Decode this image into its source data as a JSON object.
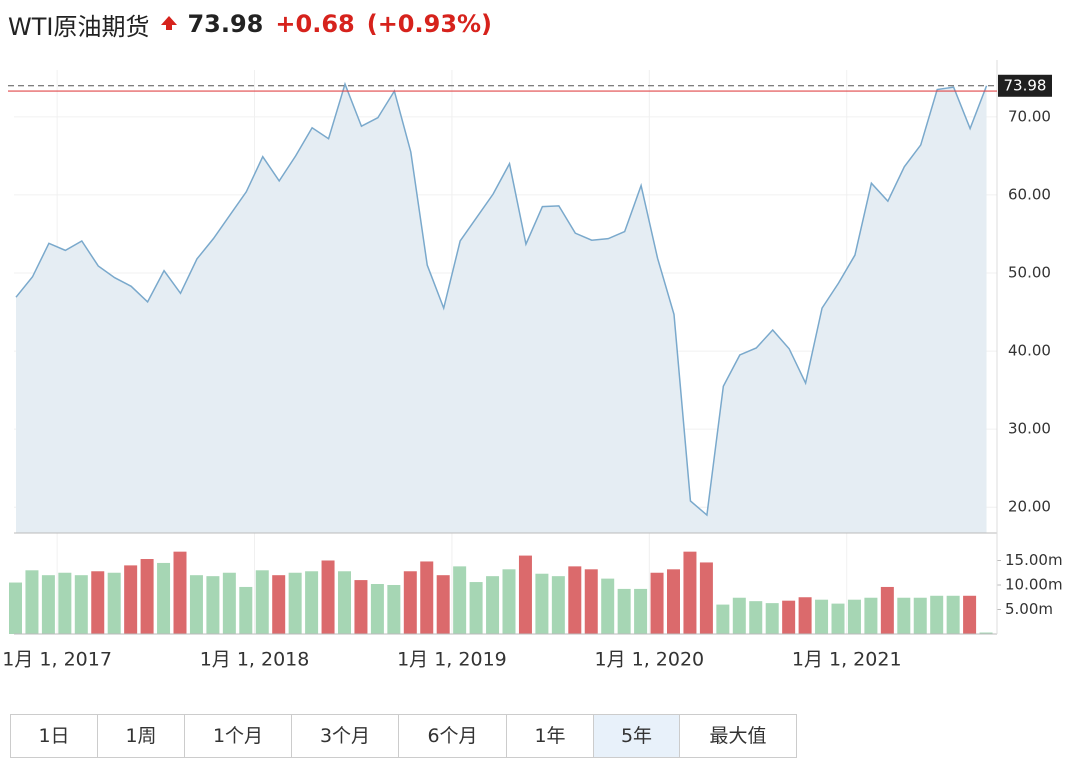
{
  "header": {
    "title": "WTI原油期货",
    "price": "73.98",
    "change": "+0.68",
    "change_pct": "(+0.93%)"
  },
  "chart_data": {
    "type": "line",
    "categories": [
      null,
      null,
      null,
      "1月 1, 2017",
      null,
      null,
      null,
      null,
      null,
      null,
      null,
      null,
      null,
      null,
      null,
      "1月 1, 2018",
      null,
      null,
      null,
      null,
      null,
      null,
      null,
      null,
      null,
      null,
      null,
      "1月 1, 2019",
      null,
      null,
      null,
      null,
      null,
      null,
      null,
      null,
      null,
      null,
      null,
      "1月 1, 2020",
      null,
      null,
      null,
      null,
      null,
      null,
      null,
      null,
      null,
      null,
      null,
      "1月 1, 2021",
      null,
      null,
      null,
      null,
      null,
      null,
      null,
      null
    ],
    "series": [
      {
        "color": "#7aa9cc",
        "fill": "#e5edf3",
        "values": [
          46.9,
          49.5,
          53.8,
          52.9,
          54.1,
          50.9,
          49.4,
          48.3,
          46.3,
          50.3,
          47.4,
          51.8,
          54.4,
          57.4,
          60.4,
          64.9,
          61.8,
          65.0,
          68.6,
          67.2,
          74.2,
          68.8,
          69.9,
          73.3,
          65.5,
          51.0,
          45.5,
          54.1,
          57.1,
          60.1,
          64.0,
          53.7,
          58.5,
          58.6,
          55.1,
          54.2,
          54.4,
          55.3,
          61.2,
          51.9,
          44.7,
          20.8,
          19.0,
          35.5,
          39.5,
          40.4,
          42.7,
          40.3,
          35.9,
          45.5,
          48.7,
          52.3,
          61.5,
          59.2,
          63.6,
          66.4,
          73.5,
          73.8,
          68.5,
          73.98
        ]
      }
    ],
    "ylim": [
      16.7,
      76
    ],
    "yticks": [
      {
        "value": 20,
        "label": "20.00"
      },
      {
        "value": 30,
        "label": "30.00"
      },
      {
        "value": 40,
        "label": "40.00"
      },
      {
        "value": 50,
        "label": "50.00"
      },
      {
        "value": 60,
        "label": "60.00"
      },
      {
        "value": 70,
        "label": "70.00"
      }
    ],
    "last_price": 73.98,
    "previous_close": 73.3,
    "grid": true,
    "volume": {
      "type": "bar",
      "values": [
        10.5,
        13,
        12,
        12.5,
        12,
        12.8,
        12.5,
        14,
        15.3,
        14.5,
        16.8,
        12,
        11.8,
        12.5,
        9.6,
        13,
        12,
        12.5,
        12.8,
        15,
        12.8,
        11,
        10.2,
        10,
        12.8,
        14.8,
        12,
        13.8,
        10.6,
        11.8,
        13.2,
        16,
        12.3,
        11.8,
        13.8,
        13.2,
        11.3,
        9.2,
        9.2,
        12.5,
        13.2,
        16.8,
        14.6,
        6,
        7.4,
        6.7,
        6.3,
        6.8,
        7.5,
        7,
        6.2,
        7,
        7.4,
        9.6,
        7.4,
        7.4,
        7.8,
        7.8,
        7.8,
        0.3
      ],
      "colors": [
        "#a6d6b4",
        "#a6d6b4",
        "#a6d6b4",
        "#a6d6b4",
        "#a6d6b4",
        "#db6a6c",
        "#a6d6b4",
        "#db6a6c",
        "#db6a6c",
        "#a6d6b4",
        "#db6a6c",
        "#a6d6b4",
        "#a6d6b4",
        "#a6d6b4",
        "#a6d6b4",
        "#a6d6b4",
        "#db6a6c",
        "#a6d6b4",
        "#a6d6b4",
        "#db6a6c",
        "#a6d6b4",
        "#db6a6c",
        "#a6d6b4",
        "#a6d6b4",
        "#db6a6c",
        "#db6a6c",
        "#db6a6c",
        "#a6d6b4",
        "#a6d6b4",
        "#a6d6b4",
        "#a6d6b4",
        "#db6a6c",
        "#a6d6b4",
        "#a6d6b4",
        "#db6a6c",
        "#db6a6c",
        "#a6d6b4",
        "#a6d6b4",
        "#a6d6b4",
        "#db6a6c",
        "#db6a6c",
        "#db6a6c",
        "#db6a6c",
        "#a6d6b4",
        "#a6d6b4",
        "#a6d6b4",
        "#a6d6b4",
        "#db6a6c",
        "#db6a6c",
        "#a6d6b4",
        "#a6d6b4",
        "#a6d6b4",
        "#a6d6b4",
        "#db6a6c",
        "#a6d6b4",
        "#a6d6b4",
        "#a6d6b4",
        "#a6d6b4",
        "#db6a6c",
        "#a6d6b4"
      ],
      "ylim": [
        0,
        20.2
      ],
      "yticks": [
        {
          "value": 5,
          "label": "5.00m"
        },
        {
          "value": 10,
          "label": "10.00m"
        },
        {
          "value": 15,
          "label": "15.00m"
        }
      ]
    }
  },
  "range_buttons": [
    "1日",
    "1周",
    "1个月",
    "3个月",
    "6个月",
    "1年",
    "5年",
    "最大值"
  ],
  "selected_range": 6
}
